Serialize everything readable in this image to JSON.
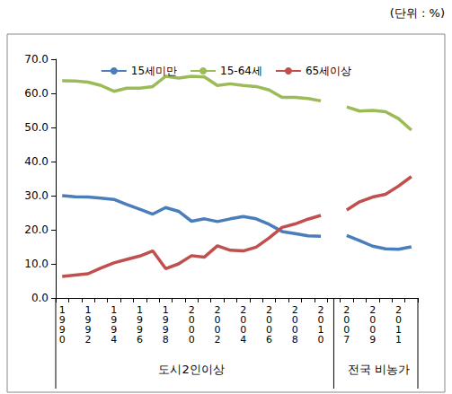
{
  "chart_data": {
    "type": "line",
    "unit_note": "(단위 : %)",
    "categories": [
      "1990",
      null,
      "1992",
      null,
      "1994",
      null,
      "1996",
      null,
      "1998",
      null,
      "2000",
      null,
      "2002",
      null,
      "2004",
      null,
      "2006",
      null,
      "2008",
      null,
      "2010",
      null,
      "2007",
      null,
      "2009",
      null,
      "2011",
      null
    ],
    "groups": [
      "도시2인이상",
      "전국 비농가"
    ],
    "series": [
      {
        "name": "15세미만",
        "color": "#4a7ebb",
        "values": [
          30.0,
          29.7,
          29.6,
          29.3,
          28.9,
          27.4,
          26.0,
          24.6,
          26.5,
          25.4,
          22.5,
          23.2,
          22.4,
          23.2,
          23.9,
          23.2,
          21.6,
          19.5,
          18.9,
          18.2,
          18.1,
          null,
          18.3,
          16.8,
          15.2,
          14.4,
          14.3,
          15.0
        ]
      },
      {
        "name": "15-64세",
        "color": "#9bbb59",
        "values": [
          63.7,
          63.6,
          63.3,
          62.3,
          60.6,
          61.5,
          61.5,
          62.0,
          65.0,
          64.5,
          65.0,
          64.8,
          62.3,
          62.8,
          62.3,
          62.0,
          61.0,
          58.8,
          58.8,
          58.5,
          57.8,
          null,
          56.0,
          54.8,
          55.0,
          54.6,
          52.6,
          49.2
        ]
      },
      {
        "name": "65세이상",
        "color": "#c0504d",
        "values": [
          6.3,
          6.7,
          7.1,
          8.8,
          10.3,
          11.3,
          12.3,
          13.8,
          8.6,
          10.0,
          12.4,
          12.0,
          15.3,
          14.0,
          13.8,
          14.9,
          17.6,
          20.7,
          21.7,
          23.1,
          24.2,
          null,
          25.8,
          28.2,
          29.6,
          30.4,
          32.8,
          35.6
        ]
      }
    ],
    "ylim": [
      0,
      70
    ],
    "yticks": [
      {
        "value": 0,
        "label": "0.0"
      },
      {
        "value": 10,
        "label": "10.0"
      },
      {
        "value": 20,
        "label": "20.0"
      },
      {
        "value": 30,
        "label": "30.0"
      },
      {
        "value": 40,
        "label": "40.0"
      },
      {
        "value": 50,
        "label": "50.0"
      },
      {
        "value": 60,
        "label": "60.0"
      },
      {
        "value": 70,
        "label": "70.0"
      }
    ],
    "grid": false,
    "legend": "top",
    "data_labels": false
  }
}
